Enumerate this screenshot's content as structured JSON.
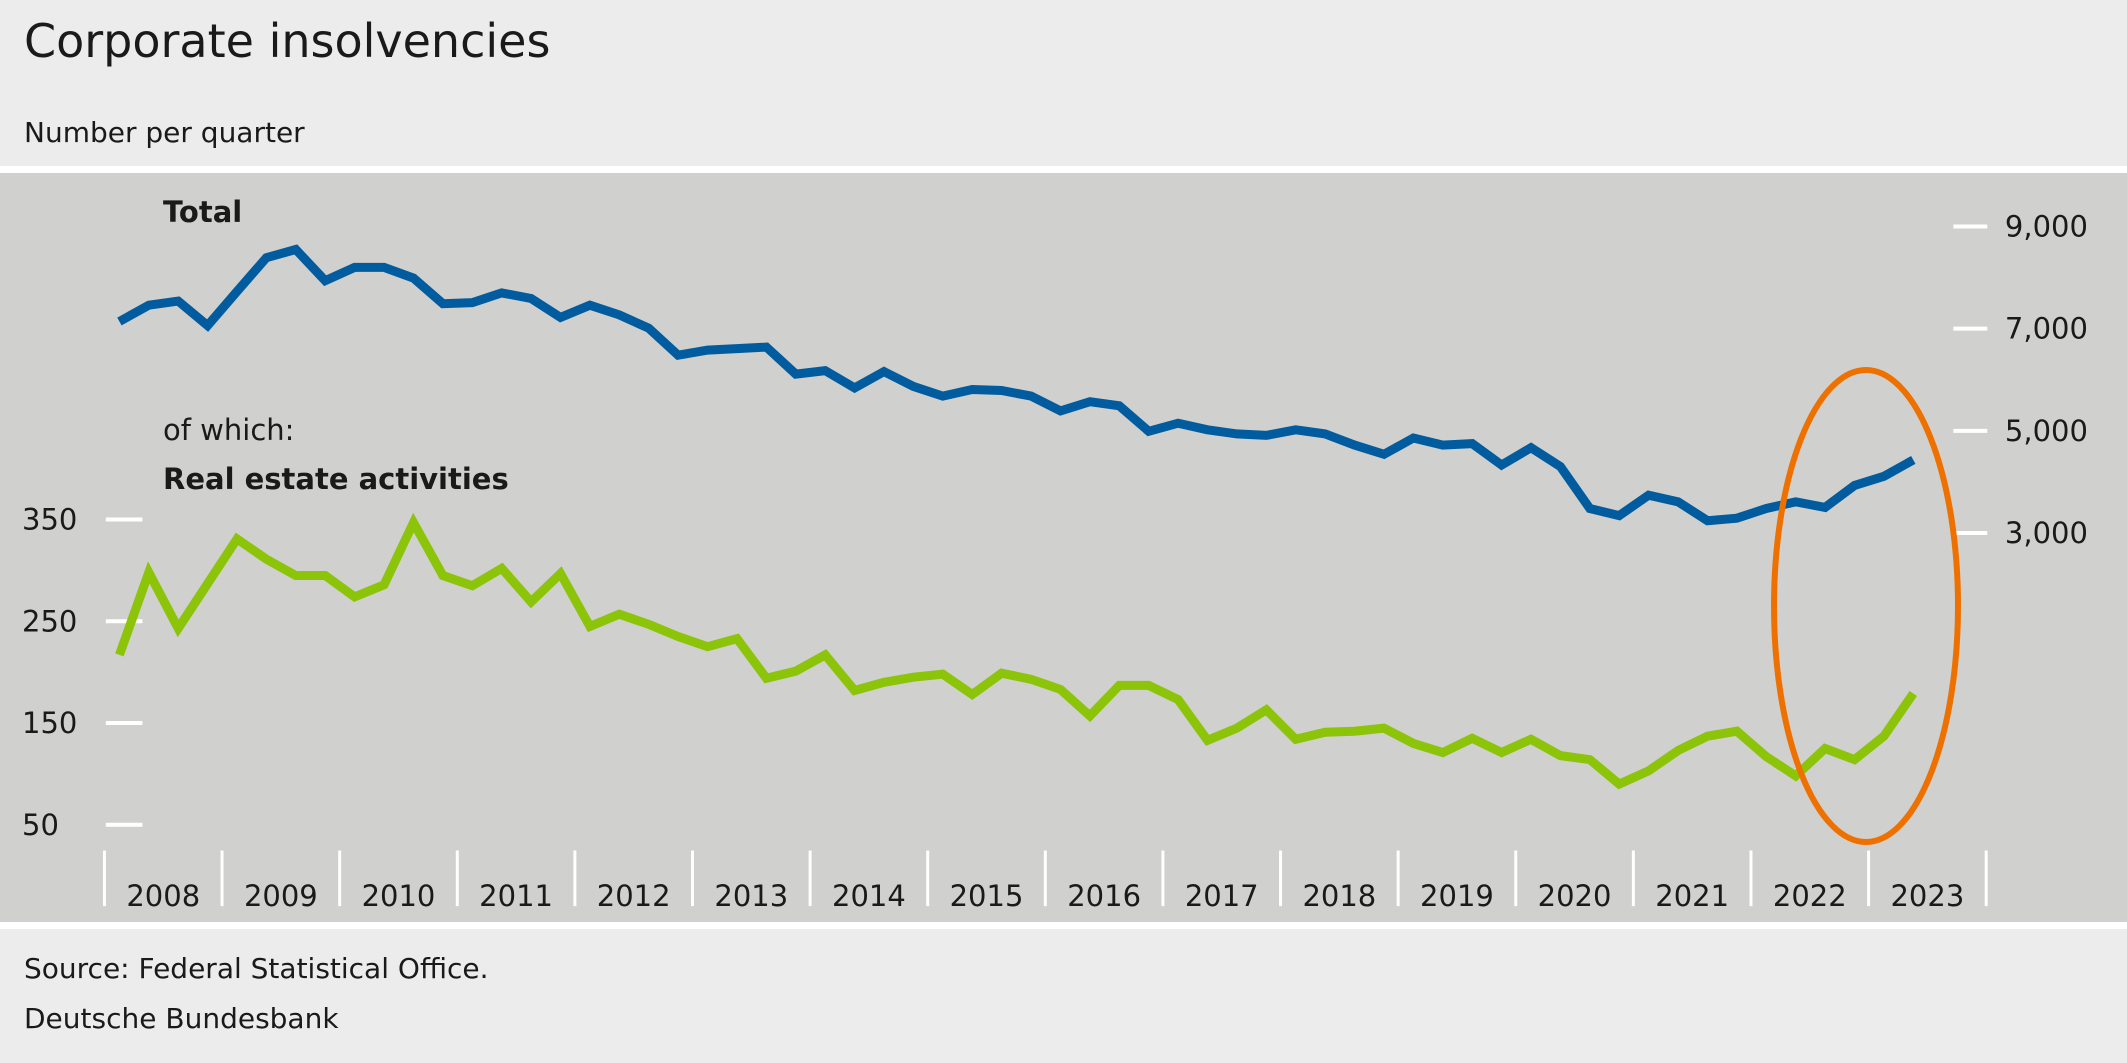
{
  "title": "Corporate insolvencies",
  "subtitle": "Number per quarter",
  "footer": {
    "source": "Source: Federal Statistical Office.",
    "publisher": "Deutsche Bundesbank"
  },
  "colors": {
    "total": "#005c9e",
    "real_estate": "#8cc40a",
    "highlight": "#ee7100",
    "plot_bg": "#d0d0ce",
    "page_bg": "#ececec"
  },
  "chart_data": {
    "type": "line",
    "title": "Corporate insolvencies",
    "subtitle": "Number per quarter",
    "x_start": "2008 Q1",
    "x_end": "2023 Q2",
    "frequency": "quarterly",
    "year_labels": [
      "2008",
      "2009",
      "2010",
      "2011",
      "2012",
      "2013",
      "2014",
      "2015",
      "2016",
      "2017",
      "2018",
      "2019",
      "2020",
      "2021",
      "2022",
      "2023"
    ],
    "left_axis": {
      "ticks": [
        "350",
        "250",
        "150",
        "50"
      ],
      "tick_values": [
        350,
        250,
        150,
        50
      ],
      "range": [
        0,
        400
      ]
    },
    "right_axis": {
      "ticks": [
        "9,000",
        "7,000",
        "5,000",
        "3,000"
      ],
      "tick_values": [
        9000,
        7000,
        5000,
        3000
      ]
    },
    "annotations": {
      "total_label": "Total",
      "of_which": "of which:",
      "real_estate_label": "Real estate activities"
    },
    "highlight": "ellipse around 2022 Q3 – 2023 Q2",
    "series": [
      {
        "name": "Total",
        "axis": "right",
        "values": [
          7140,
          7460,
          7540,
          7060,
          7730,
          8390,
          8550,
          7940,
          8200,
          8200,
          7990,
          7490,
          7510,
          7700,
          7590,
          7220,
          7460,
          7270,
          7010,
          6480,
          6580,
          6610,
          6640,
          6110,
          6180,
          5840,
          6160,
          5870,
          5680,
          5810,
          5790,
          5680,
          5390,
          5570,
          5490,
          4990,
          5150,
          5020,
          4940,
          4910,
          5020,
          4940,
          4720,
          4540,
          4860,
          4720,
          4750,
          4330,
          4670,
          4300,
          3480,
          3340,
          3740,
          3610,
          3240,
          3290,
          3480,
          3610,
          3500,
          3930,
          4110,
          4430
        ]
      },
      {
        "name": "Real estate activities",
        "axis": "left",
        "values": [
          217,
          298,
          243,
          287,
          331,
          311,
          295,
          295,
          274,
          286,
          347,
          295,
          285,
          302,
          269,
          297,
          245,
          257,
          247,
          235,
          225,
          233,
          194,
          201,
          217,
          182,
          190,
          195,
          198,
          178,
          199,
          193,
          183,
          157,
          187,
          187,
          173,
          133,
          145,
          163,
          134,
          141,
          142,
          145,
          130,
          121,
          135,
          121,
          134,
          118,
          114,
          90,
          103,
          123,
          137,
          142,
          117,
          98,
          125,
          114,
          137,
          179
        ]
      }
    ]
  }
}
